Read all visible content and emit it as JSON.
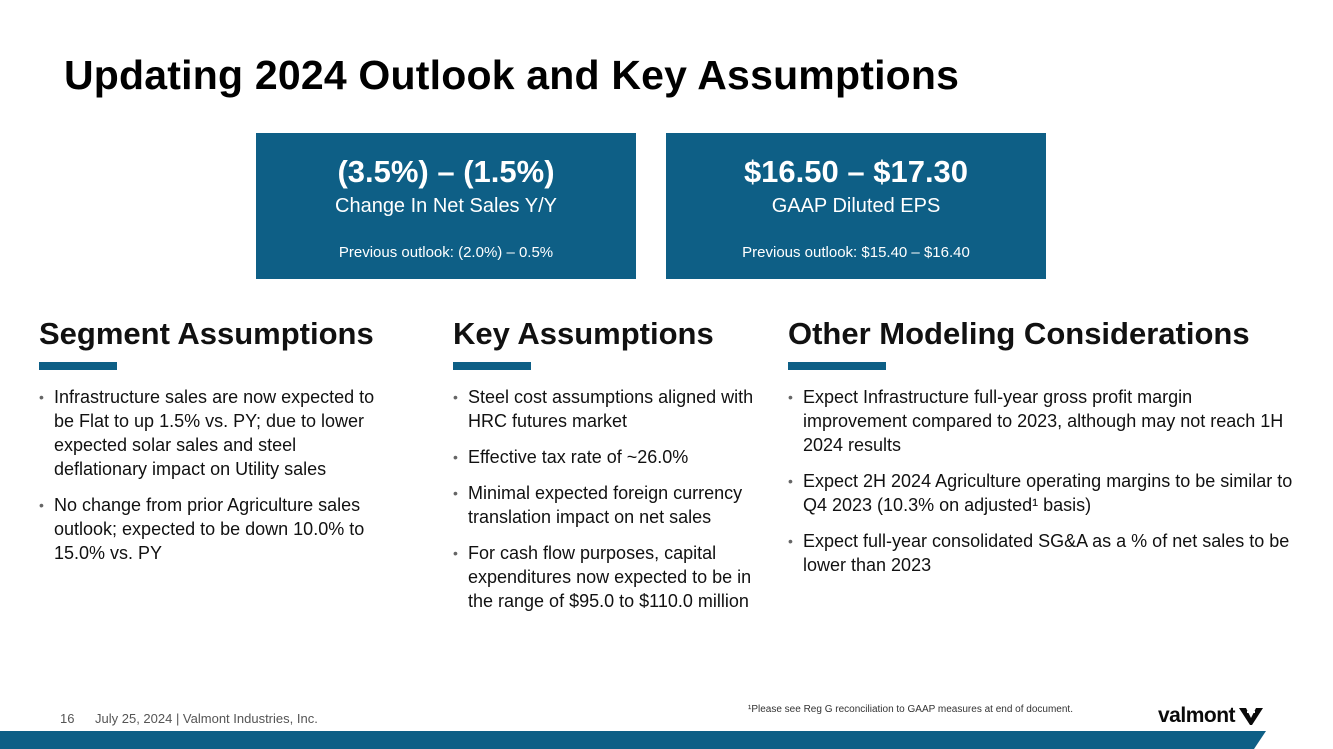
{
  "slide": {
    "title": "Updating 2024 Outlook and Key Assumptions",
    "number": "16",
    "footer": "July 25, 2024  | Valmont Industries, Inc.",
    "footnote": "¹Please see Reg G reconciliation to GAAP measures at end of document.",
    "logo_text": "valmont",
    "logo_icon": "valmont-v-icon"
  },
  "outlook": [
    {
      "value": "(3.5%) – (1.5%)",
      "label": "Change In Net Sales Y/Y",
      "previous": "Previous outlook: (2.0%) – 0.5%"
    },
    {
      "value": "$16.50 – $17.30",
      "label": "GAAP Diluted EPS",
      "previous": "Previous outlook: $15.40 – $16.40"
    }
  ],
  "segment": {
    "heading": "Segment Assumptions",
    "bullets": [
      "Infrastructure sales are now expected to be Flat to up 1.5% vs. PY; due to lower expected solar sales and steel deflationary impact on Utility sales",
      "No change from prior Agriculture sales outlook; expected to be down 10.0% to 15.0% vs. PY"
    ]
  },
  "key": {
    "heading": "Key Assumptions",
    "bullets": [
      "Steel cost assumptions aligned with HRC futures market",
      "Effective tax rate of ~26.0%",
      "Minimal expected foreign currency translation impact on net sales",
      "For cash flow purposes, capital expenditures now expected to be in the range of $95.0 to $110.0 million"
    ]
  },
  "other": {
    "heading": "Other Modeling Considerations",
    "bullets": [
      "Expect Infrastructure full-year gross profit margin improvement compared to 2023, although may not reach 1H 2024 results",
      "Expect 2H 2024 Agriculture operating margins to be similar to Q4 2023 (10.3% on adjusted¹ basis)",
      "Expect full-year consolidated SG&A as a % of net sales to be lower than 2023"
    ]
  },
  "colors": {
    "accent": "#0e5f86",
    "band": "#0e5f86"
  }
}
